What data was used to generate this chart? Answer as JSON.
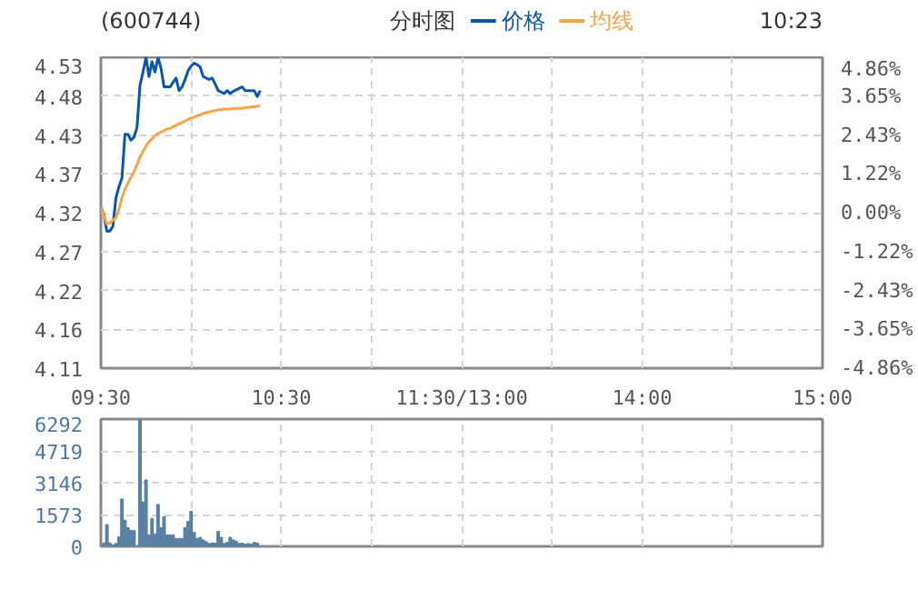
{
  "chart_data": [
    {
      "type": "line",
      "title": "分时图",
      "annotations": [
        "(600744)",
        "10:23"
      ],
      "categories": [
        "09:30",
        null,
        null,
        null,
        null,
        null,
        null,
        null,
        null,
        null,
        null,
        null,
        null,
        null,
        null,
        null,
        null,
        null,
        null,
        null,
        null,
        null,
        null,
        null,
        null,
        null,
        null,
        null,
        null,
        null,
        null,
        null,
        null,
        null,
        null,
        null,
        null,
        null,
        null,
        null,
        null,
        null,
        null,
        null,
        null,
        null,
        null,
        null,
        null,
        null,
        null,
        null,
        null,
        null,
        null,
        null,
        null,
        null,
        null,
        null,
        "10:30",
        null,
        null,
        null,
        null,
        null,
        null,
        null,
        null,
        null,
        null,
        null,
        null,
        null,
        null,
        null,
        null,
        null,
        null,
        null,
        null,
        null,
        null,
        null,
        null,
        null,
        null,
        null,
        null,
        null,
        null,
        null,
        null,
        null,
        null,
        null,
        null,
        null,
        null,
        null,
        null,
        null,
        null,
        null,
        null,
        null,
        null,
        null,
        null,
        null,
        null,
        null,
        null,
        null,
        null,
        null,
        null,
        null,
        null,
        null,
        "11:30/13:00",
        null,
        null,
        null,
        null,
        null,
        null,
        null,
        null,
        null,
        null,
        null,
        null,
        null,
        null,
        null,
        null,
        null,
        null,
        null,
        null,
        null,
        null,
        null,
        null,
        null,
        null,
        null,
        null,
        null,
        null,
        null,
        null,
        null,
        null,
        null,
        null,
        null,
        null,
        null,
        null,
        null,
        null,
        null,
        null,
        null,
        null,
        null,
        null,
        null,
        null,
        null,
        null,
        null,
        null,
        null,
        null,
        null,
        null,
        null,
        "14:00",
        null,
        null,
        null,
        null,
        null,
        null,
        null,
        null,
        null,
        null,
        null,
        null,
        null,
        null,
        null,
        null,
        null,
        null,
        null,
        null,
        null,
        null,
        null,
        null,
        null,
        null,
        null,
        null,
        null,
        null,
        null,
        null,
        null,
        null,
        null,
        null,
        null,
        null,
        null,
        null,
        null,
        null,
        null,
        null,
        null,
        null,
        null,
        null,
        null,
        null,
        null,
        null,
        null,
        null,
        null,
        null,
        null,
        null,
        null,
        "15:00"
      ],
      "series": [
        {
          "name": "价格",
          "color": "#0a56a8",
          "values": [
            4.328,
            4.317,
            4.295,
            4.295,
            4.302,
            4.34,
            4.355,
            4.367,
            4.426,
            4.426,
            4.418,
            4.422,
            4.435,
            4.492,
            4.51,
            4.53,
            4.504,
            4.524,
            4.51,
            4.53,
            4.515,
            4.49,
            4.49,
            4.49,
            4.496,
            4.502,
            4.485,
            4.49,
            4.5,
            4.512,
            4.518,
            4.522,
            4.52,
            4.517,
            4.504,
            4.502,
            4.5,
            4.502,
            4.494,
            4.485,
            4.483,
            4.481,
            4.485,
            4.481,
            4.484,
            4.486,
            4.488,
            4.49,
            4.485,
            4.485,
            4.485,
            4.485,
            4.477,
            4.485,
            null,
            null,
            null,
            null,
            null,
            null,
            null,
            null,
            null,
            null,
            null,
            null,
            null,
            null,
            null,
            null,
            null,
            null,
            null,
            null,
            null,
            null,
            null,
            null,
            null,
            null,
            null,
            null,
            null,
            null,
            null,
            null,
            null,
            null,
            null,
            null,
            null,
            null,
            null,
            null,
            null,
            null,
            null,
            null,
            null,
            null,
            null,
            null,
            null,
            null,
            null,
            null,
            null,
            null,
            null,
            null,
            null,
            null,
            null,
            null,
            null,
            null,
            null,
            null,
            null,
            null,
            null,
            null,
            null,
            null,
            null,
            null,
            null,
            null,
            null,
            null,
            null,
            null,
            null,
            null,
            null,
            null,
            null,
            null,
            null,
            null,
            null,
            null,
            null,
            null,
            null,
            null,
            null,
            null,
            null,
            null,
            null,
            null,
            null,
            null,
            null,
            null,
            null,
            null,
            null,
            null,
            null,
            null,
            null,
            null,
            null,
            null,
            null,
            null,
            null,
            null,
            null,
            null,
            null,
            null,
            null,
            null,
            null,
            null,
            null,
            null,
            null,
            null,
            null,
            null,
            null,
            null,
            null,
            null,
            null,
            null,
            null,
            null,
            null,
            null,
            null,
            null,
            null,
            null,
            null,
            null,
            null,
            null,
            null,
            null,
            null,
            null,
            null,
            null,
            null,
            null,
            null,
            null,
            null,
            null,
            null,
            null,
            null,
            null,
            null,
            null,
            null,
            null,
            null,
            null,
            null,
            null,
            null,
            null,
            null,
            null,
            null,
            null,
            null,
            null,
            null,
            null,
            null,
            null,
            null,
            null,
            null
          ]
        },
        {
          "name": "均线",
          "color": "#f5a54a",
          "values": [
            4.328,
            4.315,
            4.305,
            4.306,
            4.31,
            4.313,
            4.325,
            4.34,
            4.352,
            4.36,
            4.368,
            4.375,
            4.385,
            4.395,
            4.403,
            4.41,
            4.416,
            4.42,
            4.424,
            4.427,
            4.429,
            4.431,
            4.433,
            4.434,
            4.436,
            4.438,
            4.44,
            4.442,
            4.444,
            4.446,
            4.448,
            4.449,
            4.451,
            4.452,
            4.454,
            4.455,
            4.456,
            4.457,
            4.458,
            4.459,
            4.459,
            4.46,
            4.46,
            4.46,
            4.461,
            4.461,
            4.461,
            4.461,
            4.462,
            4.462,
            4.463,
            4.463,
            4.464,
            4.464,
            null,
            null,
            null,
            null,
            null,
            null,
            null,
            null,
            null,
            null,
            null,
            null,
            null,
            null,
            null,
            null,
            null,
            null,
            null,
            null,
            null,
            null,
            null,
            null,
            null,
            null,
            null,
            null,
            null,
            null,
            null,
            null,
            null,
            null,
            null,
            null,
            null,
            null,
            null,
            null,
            null,
            null,
            null,
            null,
            null,
            null,
            null,
            null,
            null,
            null,
            null,
            null,
            null,
            null,
            null,
            null,
            null,
            null,
            null,
            null,
            null,
            null,
            null,
            null,
            null,
            null,
            null,
            null,
            null,
            null,
            null,
            null,
            null,
            null,
            null,
            null,
            null,
            null,
            null,
            null,
            null,
            null,
            null,
            null,
            null,
            null,
            null,
            null,
            null,
            null,
            null,
            null,
            null,
            null,
            null,
            null,
            null,
            null,
            null,
            null,
            null,
            null,
            null,
            null,
            null,
            null,
            null,
            null,
            null,
            null,
            null,
            null,
            null,
            null,
            null,
            null,
            null,
            null,
            null,
            null,
            null,
            null,
            null,
            null,
            null,
            null,
            null,
            null,
            null,
            null,
            null,
            null,
            null,
            null,
            null,
            null,
            null,
            null,
            null,
            null,
            null,
            null,
            null,
            null,
            null,
            null,
            null,
            null,
            null,
            null,
            null,
            null,
            null,
            null,
            null,
            null,
            null,
            null,
            null,
            null,
            null,
            null,
            null,
            null,
            null,
            null,
            null,
            null,
            null,
            null,
            null,
            null,
            null,
            null,
            null,
            null,
            null,
            null,
            null,
            null,
            null,
            null,
            null,
            null,
            null,
            null,
            null
          ]
        }
      ],
      "ylim": [
        4.11,
        4.53
      ],
      "yticks": [
        4.11,
        {
          "value": 4.1625,
          "label": "4.16"
        },
        {
          "value": 4.215,
          "label": "4.22"
        },
        {
          "value": 4.2675,
          "label": "4.27"
        },
        4.32,
        {
          "value": 4.3725,
          "label": "4.37"
        },
        {
          "value": 4.425,
          "label": "4.43"
        },
        {
          "value": 4.4775,
          "label": "4.48"
        },
        4.53
      ],
      "y2lim": [
        -4.86,
        4.86
      ],
      "y2ticks": [
        {
          "value": -4.86,
          "label": "-4.86%"
        },
        {
          "value": -3.645,
          "label": "-3.65%"
        },
        {
          "value": -2.43,
          "label": "-2.43%"
        },
        {
          "value": -1.215,
          "label": "-1.22%"
        },
        {
          "value": 0,
          "label": "0.00%"
        },
        {
          "value": 1.215,
          "label": "1.22%"
        },
        {
          "value": 2.43,
          "label": "2.43%"
        },
        {
          "value": 3.645,
          "label": "3.65%"
        },
        {
          "value": 4.86,
          "label": "4.86%"
        }
      ],
      "grid": true,
      "legend": "top"
    },
    {
      "type": "bar",
      "color": "#5a80a3",
      "categories": [
        null,
        null,
        null,
        null,
        null,
        null,
        null,
        null,
        null,
        null,
        null,
        null,
        null,
        null,
        null,
        null,
        null,
        null,
        null,
        null,
        null,
        null,
        null,
        null,
        null,
        null,
        null,
        null,
        null,
        null,
        null,
        null,
        null,
        null,
        null,
        null,
        null,
        null,
        null,
        null,
        null,
        null,
        null,
        null,
        null,
        null,
        null,
        null,
        null,
        null,
        null,
        null,
        null,
        null,
        null,
        null,
        null,
        null,
        null,
        null,
        null,
        null,
        null,
        null,
        null,
        null,
        null,
        null,
        null,
        null,
        null,
        null,
        null,
        null,
        null,
        null,
        null,
        null,
        null,
        null,
        null,
        null,
        null,
        null,
        null,
        null,
        null,
        null,
        null,
        null,
        null,
        null,
        null,
        null,
        null,
        null,
        null,
        null,
        null,
        null,
        null,
        null,
        null,
        null,
        null,
        null,
        null,
        null,
        null,
        null,
        null,
        null,
        null,
        null,
        null,
        null,
        null,
        null,
        null,
        null,
        null,
        null,
        null,
        null,
        null,
        null,
        null,
        null,
        null,
        null,
        null,
        null,
        null,
        null,
        null,
        null,
        null,
        null,
        null,
        null,
        null,
        null,
        null,
        null,
        null,
        null,
        null,
        null,
        null,
        null,
        null,
        null,
        null,
        null,
        null,
        null,
        null,
        null,
        null,
        null,
        null,
        null,
        null,
        null,
        null,
        null,
        null,
        null,
        null,
        null,
        null,
        null,
        null,
        null,
        null,
        null,
        null,
        null,
        null,
        null,
        null,
        null,
        null,
        null,
        null,
        null,
        null,
        null,
        null,
        null,
        null,
        null,
        null,
        null,
        null,
        null,
        null,
        null,
        null,
        null,
        null,
        null,
        null,
        null,
        null,
        null,
        null,
        null,
        null,
        null,
        null,
        null,
        null,
        null,
        null,
        null,
        null,
        null,
        null,
        null,
        null,
        null,
        null,
        null,
        null,
        null,
        null,
        null,
        null,
        null,
        null,
        null,
        null,
        null,
        null,
        null,
        null,
        null,
        null,
        null,
        null
      ],
      "values": [
        null,
        150,
        1060,
        150,
        60,
        120,
        450,
        2330,
        1270,
        910,
        760,
        760,
        null,
        6292,
        2180,
        3270,
        550,
        1360,
        600,
        2060,
        910,
        1450,
        550,
        550,
        550,
        370,
        370,
        370,
        910,
        1210,
        1720,
        670,
        370,
        430,
        300,
        210,
        120,
        150,
        150,
        730,
        430,
        120,
        180,
        430,
        300,
        240,
        120,
        150,
        90,
        120,
        90,
        180,
        150,
        null,
        null,
        null,
        null,
        null,
        null,
        null,
        null,
        null,
        null,
        null,
        null,
        null,
        null,
        null,
        null,
        null,
        null,
        null,
        null,
        null,
        null,
        null,
        null,
        null,
        null,
        null,
        null,
        null,
        null,
        null,
        null,
        null,
        null,
        null,
        null,
        null,
        null,
        null,
        null,
        null,
        null,
        null,
        null,
        null,
        null,
        null,
        null,
        null,
        null,
        null,
        null,
        null,
        null,
        null,
        null,
        null,
        null,
        null,
        null,
        null,
        null,
        null,
        null,
        null,
        null,
        null,
        null,
        null,
        null,
        null,
        null,
        null,
        null,
        null,
        null,
        null,
        null,
        null,
        null,
        null,
        null,
        null,
        null,
        null,
        null,
        null,
        null,
        null,
        null,
        null,
        null,
        null,
        null,
        null,
        null,
        null,
        null,
        null,
        null,
        null,
        null,
        null,
        null,
        null,
        null,
        null,
        null,
        null,
        null,
        null,
        null,
        null,
        null,
        null,
        null,
        null,
        null,
        null,
        null,
        null,
        null,
        null,
        null,
        null,
        null,
        null,
        null,
        null,
        null,
        null,
        null,
        null,
        null,
        null,
        null,
        null,
        null,
        null,
        null,
        null,
        null,
        null,
        null,
        null,
        null,
        null,
        null,
        null,
        null,
        null,
        null,
        null,
        null,
        null,
        null,
        null,
        null,
        null,
        null,
        null,
        null,
        null,
        null,
        null,
        null,
        null,
        null,
        null,
        null,
        null,
        null,
        null,
        null,
        null,
        null,
        null,
        null,
        null,
        null,
        null,
        null,
        null,
        null,
        null,
        null,
        null,
        null
      ],
      "ylim": [
        0,
        6292
      ],
      "yticks": [
        0,
        1573,
        3146,
        4719,
        6292
      ],
      "grid": true,
      "tick_labels": "y"
    }
  ]
}
